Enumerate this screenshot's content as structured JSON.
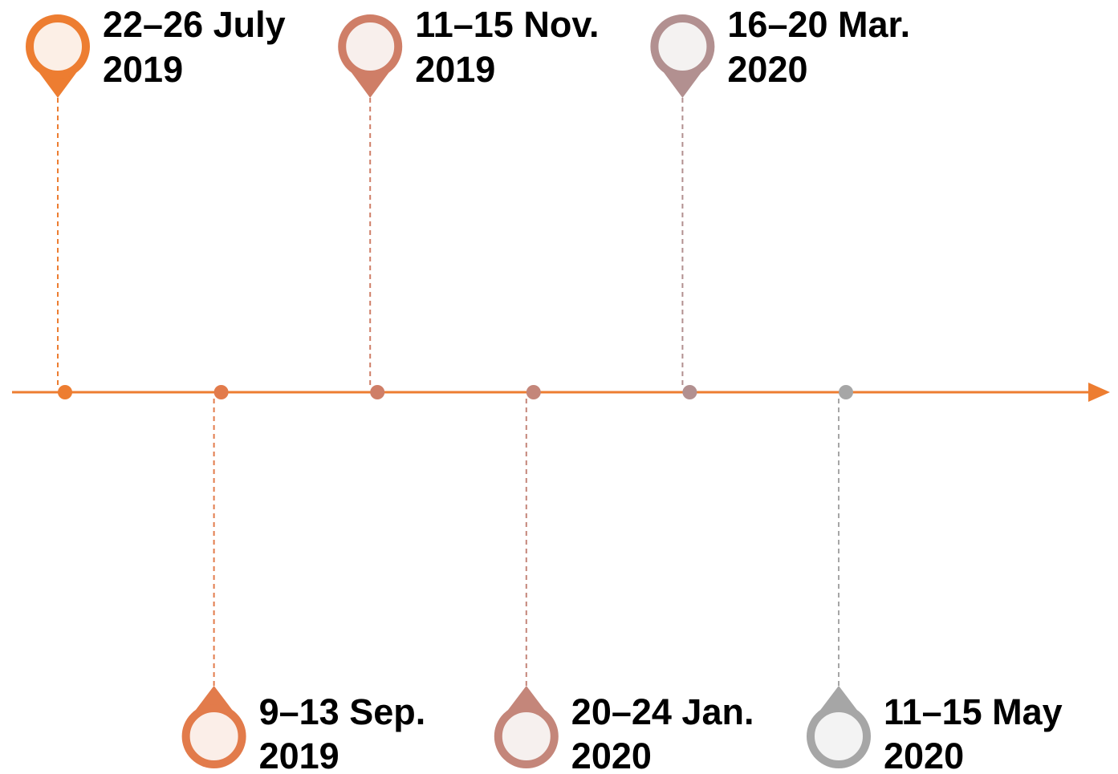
{
  "events": [
    {
      "label": [
        "22–26 July",
        "2019"
      ],
      "color": "#ED7D31",
      "fill": "#FCEFE6"
    },
    {
      "label": [
        "9–13 Sep.",
        "2019"
      ],
      "color": "#E27B4B",
      "fill": "#FBEEE8"
    },
    {
      "label": [
        "11–15 Nov.",
        "2019"
      ],
      "color": "#CF7E67",
      "fill": "#F8EFEC"
    },
    {
      "label": [
        "20–24 Jan.",
        "2020"
      ],
      "color": "#C4867A",
      "fill": "#F6F0EE"
    },
    {
      "label": [
        "16–20 Mar.",
        "2020"
      ],
      "color": "#B29090",
      "fill": "#F4F2F1"
    },
    {
      "label": [
        "11–15 May",
        "2020"
      ],
      "color": "#A6A6A6",
      "fill": "#F3F3F3"
    }
  ]
}
